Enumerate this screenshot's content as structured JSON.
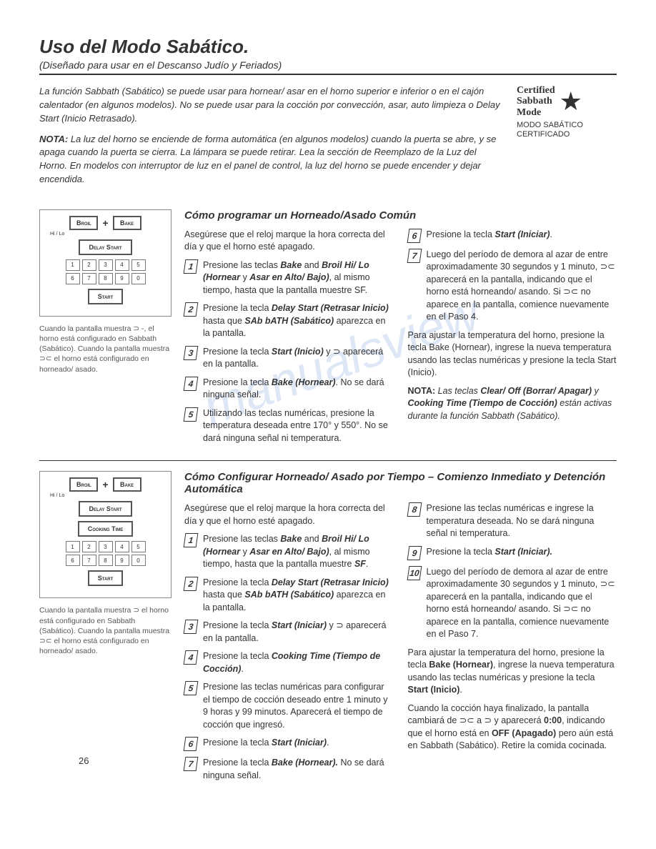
{
  "page": {
    "title": "Uso del Modo Sabático.",
    "subtitle": "(Diseñado para usar en el Descanso Judío y Feriados)",
    "intro1": "La función Sabbath (Sabático) se puede usar para hornear/ asar en el horno superior e inferior o en el cajón calentador (en algunos modelos). No se puede usar para la cocción por convección, asar, auto limpieza o Delay Start (Inicio Retrasado).",
    "nota_label": "NOTA:",
    "intro2": " La luz del horno se enciende de forma automática (en algunos modelos) cuando la puerta se abre, y se apaga cuando la puerta se cierra. La lámpara se puede retirar. Lea la sección de Reemplazo de la Luz del Horno. En modelos con interruptor de luz en el panel de control, la luz del horno se puede encender y dejar encendida.",
    "pagenum": "26"
  },
  "cert": {
    "l1": "Certified",
    "l2": "Sabbath",
    "l3": "Mode",
    "sub": "MODO SABÁTICO CERTIFICADO"
  },
  "panel": {
    "broil": "Broil",
    "bake": "Bake",
    "hilo": "Hi / Lo",
    "delay": "Delay Start",
    "cooking": "Cooking Time",
    "start": "Start",
    "keys": [
      "1",
      "2",
      "3",
      "4",
      "5",
      "6",
      "7",
      "8",
      "9",
      "0"
    ]
  },
  "caption1": "Cuando la pantalla muestra ⊃ -, el horno está configurado en Sabbath (Sabático). Cuando la pantalla muestra ⊃⊂ el horno está configurado en horneado/ asado.",
  "caption2": "Cuando la pantalla muestra ⊃ el horno está configurado en Sabbath (Sabático). Cuando la pantalla muestra ⊃⊂ el horno está configurado en horneado/ asado.",
  "sect1": {
    "title": "Cómo programar un Horneado/Asado Común",
    "lead": "Asegúrese que el reloj marque la hora correcta del día y que el horno esté apagado.",
    "steps_left": [
      {
        "n": "1",
        "pre": "Presione las teclas ",
        "b1": "Bake",
        "mid1": " and ",
        "b2": "Broil Hi/ Lo (Hornear",
        "mid2": " y ",
        "b3": "Asar en Alto/ Bajo)",
        "post": ", al mismo tiempo, hasta que la pantalla muestre SF."
      },
      {
        "n": "2",
        "pre": "Presione la tecla ",
        "b1": "Delay Start (Retrasar Inicio)",
        "mid1": " hasta que ",
        "b2": "SAb bATH (Sabático)",
        "post": " aparezca en la pantalla."
      },
      {
        "n": "3",
        "pre": "Presione la tecla ",
        "b1": "Start (Inicio)",
        "post": " y ⊃ aparecerá en la pantalla."
      },
      {
        "n": "4",
        "pre": "Presione la tecla ",
        "b1": "Bake (Hornear)",
        "post": ". No se dará ninguna señal."
      },
      {
        "n": "5",
        "pre": "Utilizando las teclas numéricas, presione la temperatura deseada entre 170° y 550°. No se dará ninguna señal ni temperatura."
      }
    ],
    "steps_right": [
      {
        "n": "6",
        "pre": "Presione la tecla ",
        "b1": "Start (Iniciar)",
        "post": "."
      },
      {
        "n": "7",
        "pre": "Luego del período de demora al azar de entre aproximadamente 30 segundos y 1 minuto, ⊃⊂ aparecerá en la pantalla, indicando que el horno está horneando/ asando. Si ⊃⊂ no aparece en la pantalla, comience nuevamente en el Paso 4."
      }
    ],
    "tail1": "Para ajustar la temperatura del horno, presione la tecla Bake (Hornear), ingrese la nueva temperatura usando las teclas numéricas y presione la tecla Start (Inicio).",
    "tail_nota": "NOTA:",
    "tail2_a": " Las teclas ",
    "tail2_b1": "Clear/ Off (Borrar/ Apagar)",
    "tail2_mid": " y ",
    "tail2_b2": "Cooking Time (Tiempo de Cocción)",
    "tail2_c": " están activas durante la función Sabbath (Sabático)."
  },
  "sect2": {
    "title": "Cómo Configurar Horneado/ Asado por Tiempo – Comienzo Inmediato y Detención Automática",
    "lead": "Asegúrese que el reloj marque la hora correcta del día y que el horno esté apagado.",
    "steps_left": [
      {
        "n": "1",
        "pre": "Presione las teclas ",
        "b1": "Bake",
        "mid1": " and ",
        "b2": "Broil Hi/ Lo (Hornear",
        "mid2": " y ",
        "b3": "Asar en Alto/ Bajo)",
        "post": ", al mismo tiempo, hasta que la pantalla muestre ",
        "b4": "SF",
        "post2": "."
      },
      {
        "n": "2",
        "pre": "Presione la tecla ",
        "b1": "Delay Start (Retrasar Inicio)",
        "mid1": " hasta que ",
        "b2": "SAb bATH (Sabático)",
        "post": " aparezca en la pantalla."
      },
      {
        "n": "3",
        "pre": "Presione la tecla ",
        "b1": "Start (Iniciar)",
        "post": " y ⊃ aparecerá en la pantalla."
      },
      {
        "n": "4",
        "pre": "Presione la tecla ",
        "b1": "Cooking Time (Tiempo de Cocción)",
        "post": "."
      },
      {
        "n": "5",
        "pre": "Presione las teclas numéricas para configurar el tiempo de cocción deseado entre 1 minuto y 9 horas y 99 minutos. Aparecerá el tiempo de cocción que ingresó."
      },
      {
        "n": "6",
        "pre": "Presione la tecla ",
        "b1": "Start (Iniciar)",
        "post": "."
      },
      {
        "n": "7",
        "pre": "Presione la tecla ",
        "b1": "Bake (Hornear).",
        "post": " No se dará ninguna señal."
      }
    ],
    "steps_right": [
      {
        "n": "8",
        "pre": "Presione las teclas numéricas e ingrese la temperatura deseada. No se dará ninguna señal ni temperatura."
      },
      {
        "n": "9",
        "pre": "Presione la tecla ",
        "b1": "Start (Iniciar).",
        "post": ""
      },
      {
        "n": "10",
        "pre": "Luego del período de demora al azar de entre aproximadamente 30 segundos y 1 minuto, ⊃⊂ aparecerá en la pantalla, indicando que el horno está horneando/ asando. Si ⊃⊂ no aparece en la pantalla, comience nuevamente en el Paso 7."
      }
    ],
    "tail1_a": "Para ajustar la temperatura del horno, presione la tecla ",
    "tail1_b1": "Bake (Hornear)",
    "tail1_b": ", ingrese la nueva temperatura usando las teclas numéricas y presione la tecla ",
    "tail1_b2": "Start (Inicio)",
    "tail1_c": ".",
    "tail2_a": "Cuando la cocción haya finalizado, la pantalla cambiará de ⊃⊂ a ⊃ y aparecerá ",
    "tail2_b": "0:00",
    "tail2_c": ", indicando que el horno está en ",
    "tail2_d": "OFF (Apagado)",
    "tail2_e": " pero aún está en Sabbath (Sabático). Retire la comida cocinada."
  },
  "watermark": "manualsview"
}
